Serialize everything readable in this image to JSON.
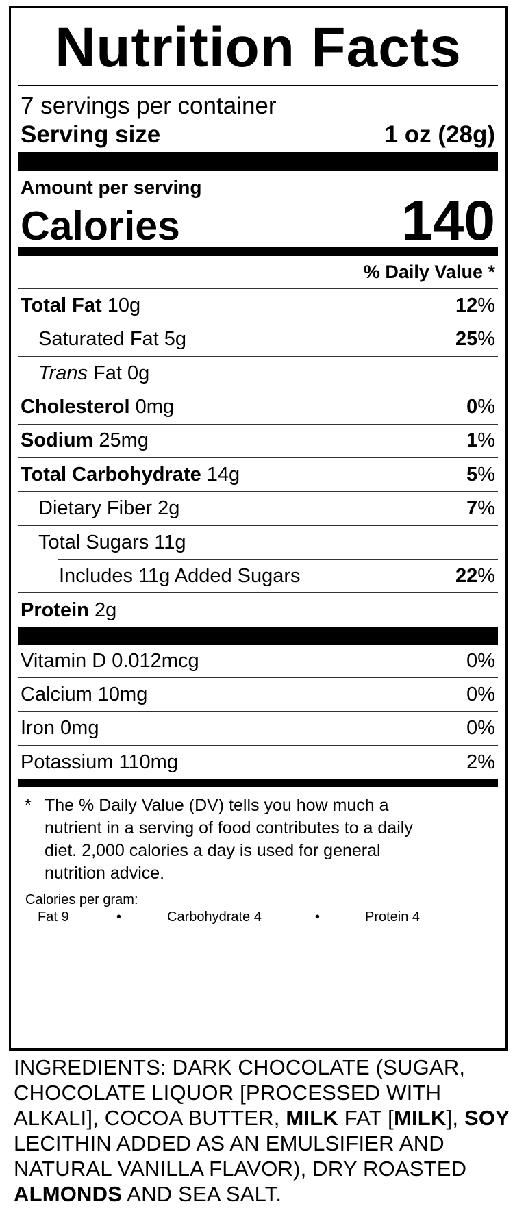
{
  "label": {
    "title": "Nutrition Facts",
    "servings": "7 servings per container",
    "serving_size_label": "Serving size",
    "serving_size_value": "1 oz (28g)",
    "amount_per_serving": "Amount per serving",
    "calories_label": "Calories",
    "calories_value": "140",
    "dv_header": "% Daily Value *",
    "nutrients": [
      {
        "name": "Total Fat",
        "amount": "10g",
        "dv": "12",
        "pct": "%"
      },
      {
        "name": "Saturated Fat",
        "amount": "5g",
        "dv": "25",
        "pct": "%"
      },
      {
        "name": "Trans",
        "name2": "Fat",
        "amount": "0g"
      },
      {
        "name": "Cholesterol",
        "amount": "0mg",
        "dv": "0",
        "pct": "%"
      },
      {
        "name": "Sodium",
        "amount": "25mg",
        "dv": "1",
        "pct": "%"
      },
      {
        "name": "Total Carbohydrate",
        "amount": "14g",
        "dv": "5",
        "pct": "%"
      },
      {
        "name": "Dietary Fiber",
        "amount": "2g",
        "dv": "7",
        "pct": "%"
      },
      {
        "name": "Total Sugars",
        "amount": "11g"
      },
      {
        "name": "Includes 11g Added Sugars",
        "dv": "22",
        "pct": "%"
      },
      {
        "name": "Protein",
        "amount": "2g"
      }
    ],
    "vitamins": [
      {
        "text": "Vitamin D 0.012mcg",
        "dv": "0%"
      },
      {
        "text": "Calcium 10mg",
        "dv": "0%"
      },
      {
        "text": "Iron 0mg",
        "dv": "0%"
      },
      {
        "text": "Potassium 110mg",
        "dv": "2%"
      }
    ],
    "footnote_star": "*",
    "footnote": "The % Daily Value (DV) tells you how much a nutrient in a serving of food contributes to a daily diet. 2,000 calories a day is used for general nutrition advice.",
    "calories_per_gram": "Calories per gram:",
    "cpg_fat": "Fat 9",
    "cpg_bullet": "•",
    "cpg_carb": "Carbohydrate 4",
    "cpg_protein": "Protein 4"
  },
  "ingredients": {
    "p1": "INGREDIENTS: DARK CHOCOLATE (SUGAR, CHOCOLATE LIQUOR [PROCESSED WITH ALKALI], COCOA BUTTER, ",
    "milk1": "MILK",
    "p2": " FAT [",
    "milk2": "MILK",
    "p3": "], ",
    "soy": "SOY",
    "p4": " LECITHIN ADDED AS AN EMULSIFIER AND NATURAL VANILLA FLAVOR), DRY ROASTED ",
    "almonds": "ALMONDS",
    "p5": " AND SEA SALT."
  }
}
